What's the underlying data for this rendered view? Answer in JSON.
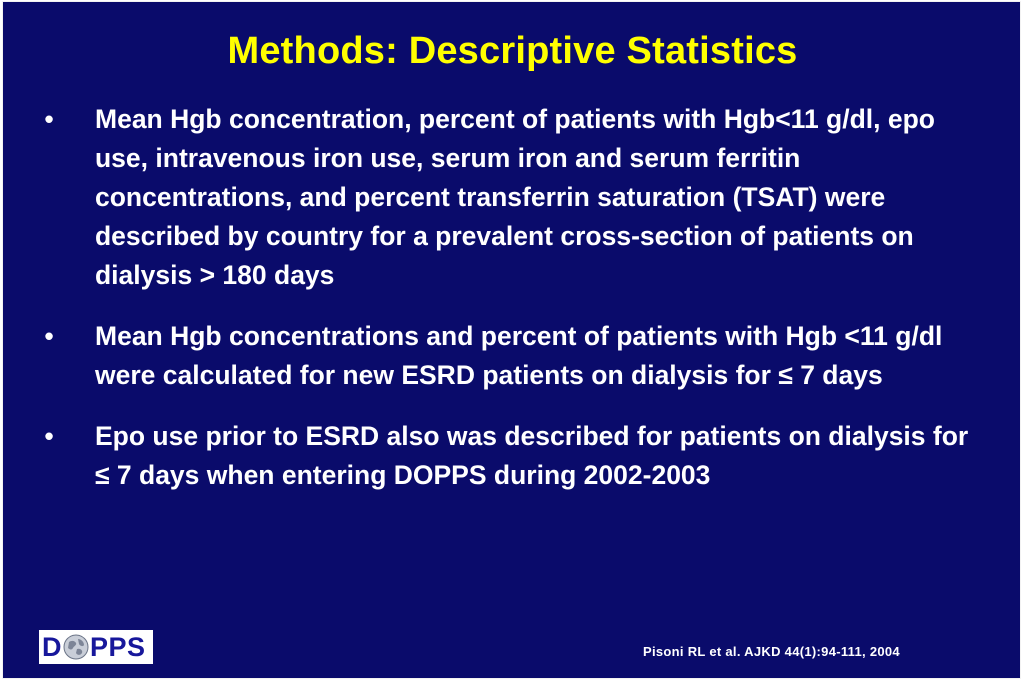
{
  "slide": {
    "title": "Methods: Descriptive Statistics",
    "bullet_symbol": "•",
    "bullets": [
      {
        "text": "Mean Hgb concentration, percent of patients with Hgb<11 g/dl, epo use, intravenous iron use, serum iron and serum ferritin concentrations, and percent transferrin saturation (TSAT) were described by country for a prevalent cross-section of patients on dialysis > 180 days"
      },
      {
        "text": "Mean Hgb concentrations and percent of patients with Hgb <11 g/dl were calculated for new ESRD patients on dialysis for ≤ 7 days"
      },
      {
        "text": "Epo use prior to ESRD also was described for patients on dialysis for ≤ 7 days when entering DOPPS during 2002-2003"
      }
    ],
    "logo": {
      "text": "DOPPS",
      "left": "D",
      "right": "PPS",
      "globe_icon": "globe-icon"
    },
    "citation": "Pisoni RL et al. AJKD 44(1):94-111, 2004"
  },
  "colors": {
    "background": "#0a0b6b",
    "title": "#ffff00",
    "body_text": "#ffffff",
    "logo_text": "#17179b"
  }
}
